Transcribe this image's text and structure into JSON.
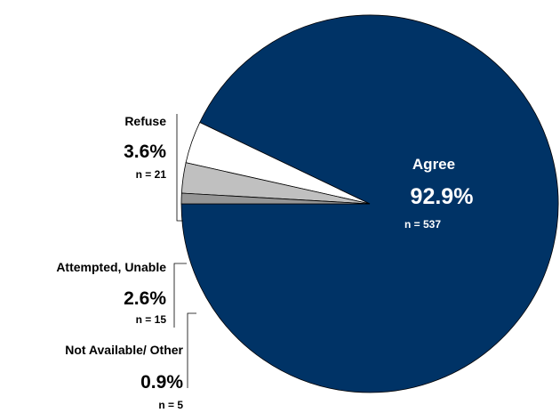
{
  "chart_data": {
    "type": "pie",
    "slices": [
      {
        "label": "Agree",
        "pct_text": "92.9%",
        "n_text": "n = 537",
        "value": 92.9,
        "n": 537,
        "color": "#003366"
      },
      {
        "label": "Refuse",
        "pct_text": "3.6%",
        "n_text": "n = 21",
        "value": 3.6,
        "n": 21,
        "color": "#ffffff"
      },
      {
        "label": "Attempted, Unable",
        "pct_text": "2.6%",
        "n_text": "n = 15",
        "value": 2.6,
        "n": 15,
        "color": "#c0c0c0"
      },
      {
        "label": "Not Available/ Other",
        "pct_text": "0.9%",
        "n_text": "n = 5",
        "value": 0.9,
        "n": 5,
        "color": "#969696"
      }
    ],
    "start_angle_deg": 180,
    "direction": "counterclockwise"
  }
}
